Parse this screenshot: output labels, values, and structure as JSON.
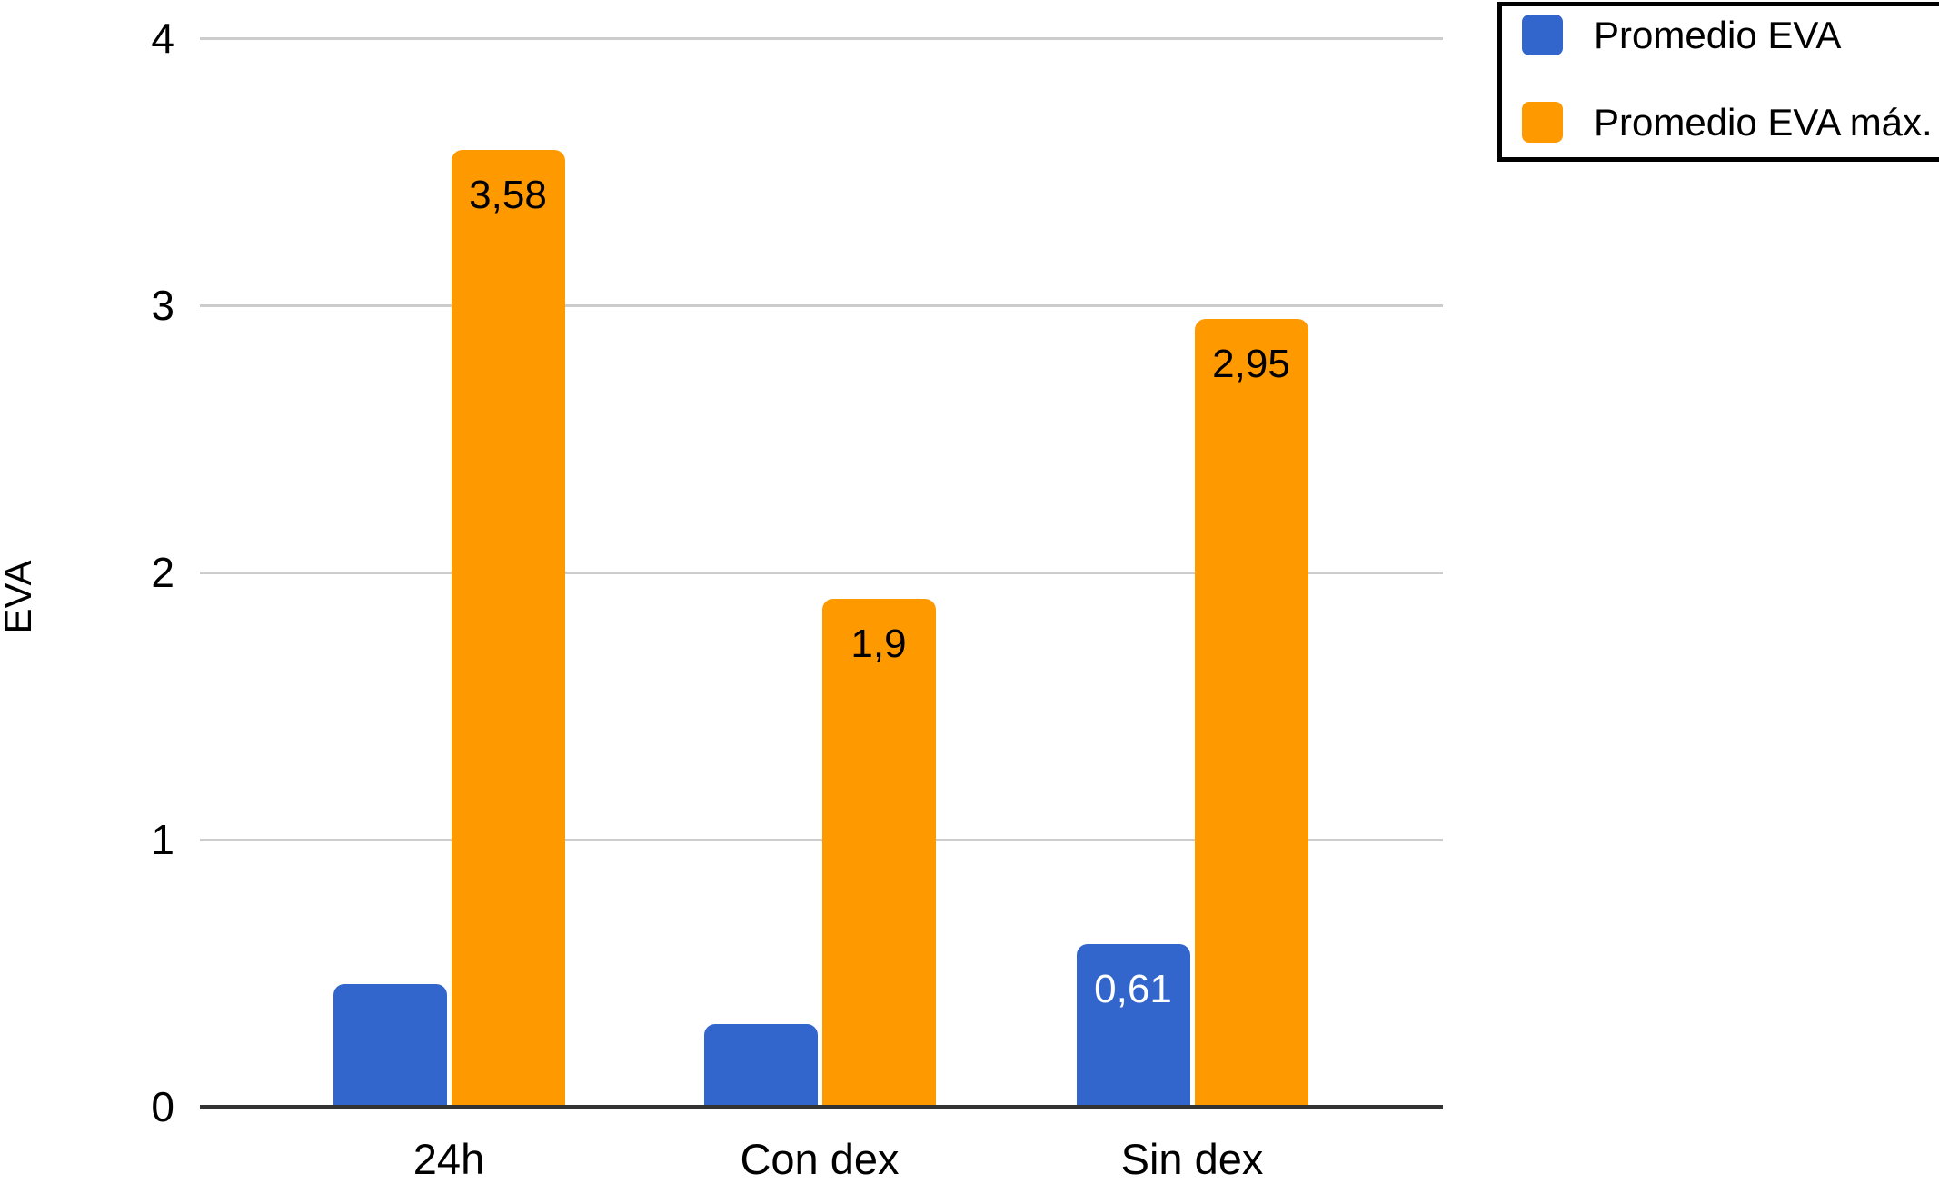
{
  "chart_data": {
    "type": "bar",
    "ylabel": "EVA",
    "categories": [
      "24h",
      "Con dex",
      "Sin dex"
    ],
    "series": [
      {
        "name": "Promedio EVA",
        "color": "#3366CC",
        "values": [
          0.46,
          0.31,
          0.61
        ],
        "data_labels": [
          "",
          "",
          "0,61"
        ],
        "data_label_color": "#FFFFFF"
      },
      {
        "name": "Promedio EVA máx.",
        "color": "#FF9900",
        "values": [
          3.58,
          1.9,
          2.95
        ],
        "data_labels": [
          "3,58",
          "1,9",
          "2,95"
        ],
        "data_label_color": "#000000"
      }
    ],
    "ylim": [
      0,
      4
    ],
    "yticks": [
      "0",
      "1",
      "2",
      "3",
      "4"
    ],
    "grid": true,
    "legend_position": "top-right",
    "gridline_color": "#CCCCCC",
    "baseline_color": "#333333",
    "text_color": "#000000",
    "background_color": "#FFFFFF"
  }
}
